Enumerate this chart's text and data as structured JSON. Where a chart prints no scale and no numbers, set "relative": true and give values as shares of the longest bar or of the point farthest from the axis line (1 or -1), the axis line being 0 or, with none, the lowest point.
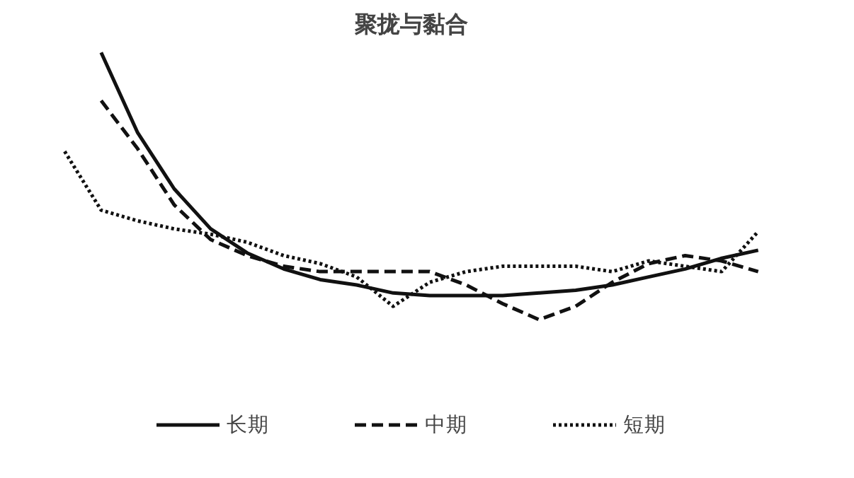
{
  "chart_data": {
    "type": "line",
    "title": "聚拢与黏合",
    "relative": true,
    "tick_labels": false,
    "legend": "bottom",
    "categories": [
      null,
      null,
      null,
      null,
      null,
      null,
      null,
      null,
      null,
      null,
      null,
      null,
      null,
      null,
      null,
      null,
      null,
      null,
      null,
      null
    ],
    "series": [
      {
        "name": "长期",
        "color": "#111111",
        "line_style": "solid",
        "values": [
          null,
          1.0,
          0.7,
          0.49,
          0.34,
          0.25,
          0.19,
          0.15,
          0.13,
          0.1,
          0.09,
          0.09,
          0.09,
          0.1,
          0.11,
          0.13,
          0.16,
          0.19,
          0.23,
          0.26
        ]
      },
      {
        "name": "中期",
        "color": "#111111",
        "line_style": "dashed",
        "values": [
          null,
          0.82,
          0.64,
          0.43,
          0.3,
          0.24,
          0.2,
          0.18,
          0.18,
          0.18,
          0.18,
          0.13,
          0.06,
          0,
          0.05,
          0.14,
          0.21,
          0.24,
          0.22,
          0.18
        ]
      },
      {
        "name": "短期",
        "color": "#111111",
        "line_style": "dotted",
        "values": [
          0.63,
          0.41,
          0.37,
          0.34,
          0.32,
          0.29,
          0.24,
          0.21,
          0.16,
          0.05,
          0.14,
          0.18,
          0.2,
          0.2,
          0.2,
          0.18,
          0.22,
          0.2,
          0.18,
          0.33
        ]
      }
    ]
  }
}
